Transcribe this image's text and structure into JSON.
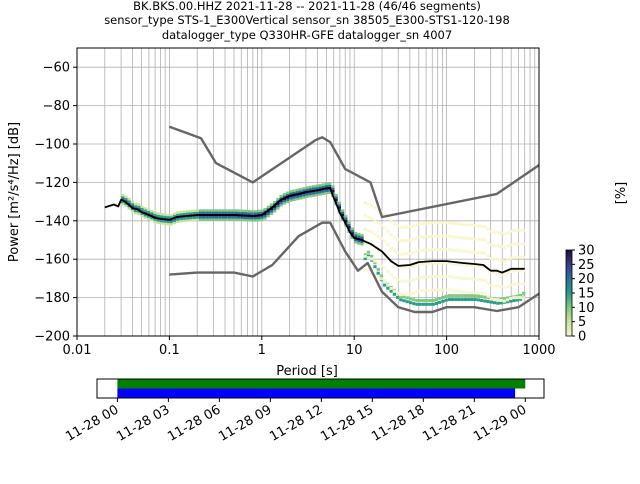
{
  "title_lines": [
    "BK.BKS.00.HHZ   2021-11-28 -- 2021-11-28  (46/46 segments)",
    "sensor_type STS-1_E300Vertical sensor_sn 38505_E300-STS1-120-198",
    "datalogger_type Q330HR-GFE datalogger_sn 4007"
  ],
  "chart_data": [
    {
      "type": "heatmap",
      "xlabel": "Period [s]",
      "ylabel": "Power [m²/s⁴/Hz] [dB]",
      "xscale": "log",
      "xlim": [
        0.01,
        1000
      ],
      "ylim": [
        -200,
        -50
      ],
      "x_ticks": [
        0.01,
        0.1,
        1,
        10,
        100,
        1000
      ],
      "x_tick_labels": [
        "0.01",
        "0.1",
        "1",
        "10",
        "100",
        "1000"
      ],
      "y_ticks": [
        -200,
        -180,
        -160,
        -140,
        -120,
        -100,
        -80,
        -60
      ],
      "y_tick_labels": [
        "−200",
        "−180",
        "−160",
        "−140",
        "−120",
        "−100",
        "−80",
        "−60"
      ],
      "grid": true,
      "colorbar": {
        "label": "[%]",
        "range": [
          0,
          30
        ],
        "ticks": [
          0,
          5,
          10,
          15,
          20,
          25,
          30
        ],
        "tick_labels": [
          "0",
          "5",
          "10",
          "15",
          "20",
          "25",
          "30"
        ],
        "colors": [
          "#f7f7d0",
          "#c9e39e",
          "#7fc97f",
          "#2e9c8a",
          "#2a6f9b",
          "#3b3c86",
          "#1e0f3d"
        ]
      },
      "series": [
        {
          "color": "#666666",
          "x": [
            0.1,
            0.22,
            0.32,
            0.8,
            3.8,
            4.5,
            5.5,
            8,
            15,
            20,
            350,
            1000
          ],
          "y": [
            -91,
            -97,
            -110,
            -120,
            -98,
            -96.5,
            -99,
            -113,
            -120,
            -138,
            -126,
            -111
          ]
        },
        {
          "color": "#666666",
          "x": [
            0.1,
            0.2,
            0.5,
            0.8,
            1.3,
            2.5,
            4.5,
            5.5,
            8,
            11,
            14,
            20,
            30,
            45,
            70,
            100,
            200,
            350,
            600,
            1000
          ],
          "y": [
            -168,
            -167,
            -167,
            -169,
            -163,
            -148,
            -141,
            -141,
            -156,
            -166,
            -162,
            -177,
            -185,
            -187.5,
            -187.5,
            -185,
            -185,
            -187,
            -185,
            -178
          ]
        },
        {
          "color": "#000000",
          "x": [
            0.02,
            0.025,
            0.028,
            0.03,
            0.033,
            0.037,
            0.04,
            0.045,
            0.05,
            0.06,
            0.07,
            0.08,
            0.1,
            0.12,
            0.15,
            0.2,
            0.3,
            0.5,
            0.8,
            1.0,
            1.3,
            1.6,
            2,
            2.5,
            3,
            4,
            5,
            5.5,
            6,
            6.5,
            7,
            8,
            9,
            10,
            12,
            15,
            20,
            25,
            30,
            40,
            50,
            70,
            100,
            150,
            200,
            250,
            300,
            350,
            400,
            500,
            700
          ],
          "y": [
            -133,
            -131.5,
            -132.5,
            -129,
            -130,
            -132,
            -133.5,
            -134,
            -135.5,
            -137,
            -138.5,
            -139,
            -139.5,
            -138,
            -137.5,
            -137,
            -137,
            -137,
            -137.5,
            -137,
            -133,
            -129,
            -127,
            -126,
            -125,
            -124,
            -123,
            -123,
            -128,
            -132,
            -136,
            -141,
            -146,
            -149,
            -150,
            -152,
            -156,
            -161,
            -163.5,
            -163,
            -161.5,
            -161,
            -161,
            -162,
            -162.5,
            -163,
            -166,
            -166,
            -167,
            -165,
            -165
          ]
        }
      ],
      "histogram_note": "PPD probability density cells"
    },
    {
      "type": "bar",
      "subtype": "timeline",
      "x_tick_labels": [
        "11-28 00",
        "11-28 03",
        "11-28 06",
        "11-28 09",
        "11-28 12",
        "11-28 15",
        "11-28 18",
        "11-28 21",
        "11-29 00"
      ],
      "x_hours": [
        0,
        3,
        6,
        9,
        12,
        15,
        18,
        21,
        24
      ],
      "xlim_hours": [
        -1.2,
        25.1
      ],
      "bars": [
        {
          "color": "#008000",
          "start_hour": 0,
          "end_hour": 24.0
        },
        {
          "color": "#0000ff",
          "start_hour": 0,
          "end_hour": 23.4
        }
      ]
    }
  ]
}
